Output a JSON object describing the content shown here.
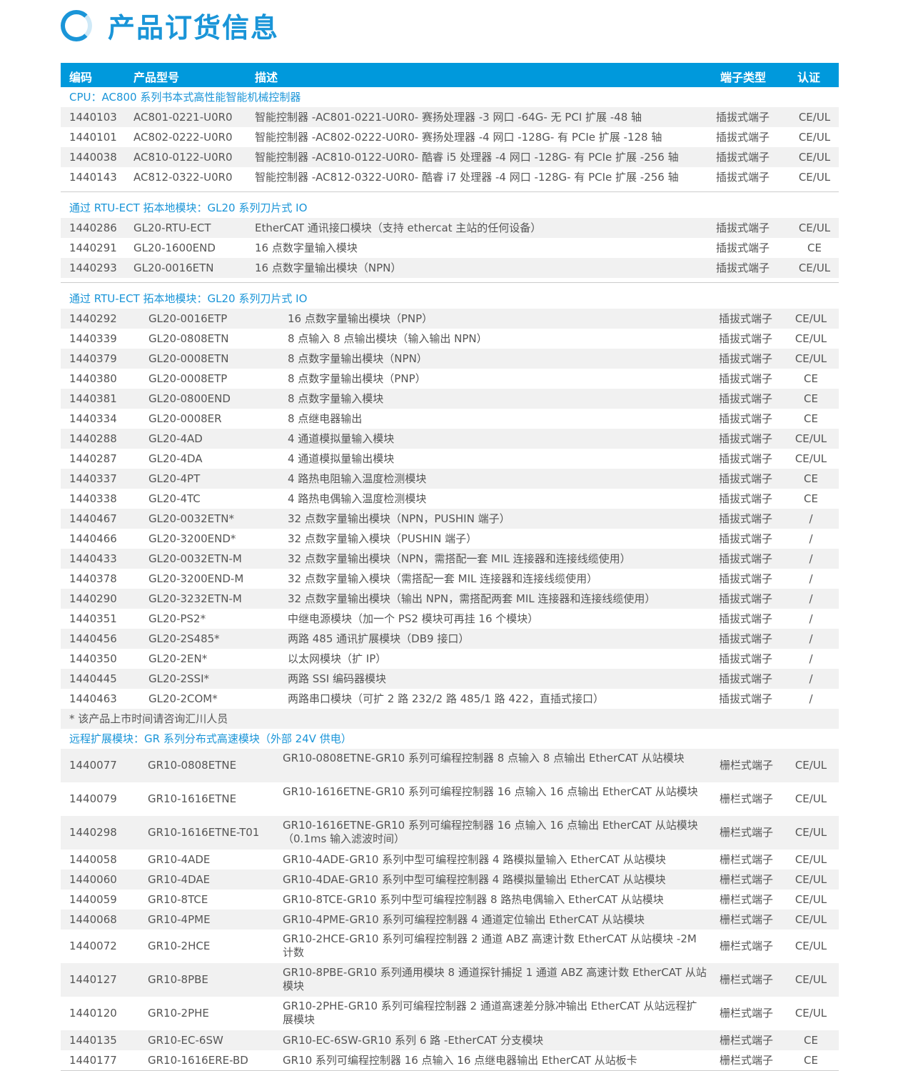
{
  "title": "产品订货信息",
  "header": {
    "code": "编码",
    "model": "产品型号",
    "desc": "描述",
    "type": "端子类型",
    "cert": "认证"
  },
  "sections": [
    {
      "title": "CPU：AC800 系列书本式高性能智能机械控制器",
      "rows": [
        [
          "1440103",
          "AC801-0221-U0R0",
          "智能控制器 -AC801-0221-U0R0- 赛扬处理器 -3 网口 -64G- 无 PCI 扩展 -48 轴",
          "插拔式端子",
          "CE/UL"
        ],
        [
          "1440101",
          "AC802-0222-U0R0",
          "智能控制器 -AC802-0222-U0R0- 赛扬处理器 -4 网口 -128G- 有 PCIe 扩展 -128 轴",
          "插拔式端子",
          "CE/UL"
        ],
        [
          "1440038",
          "AC810-0122-U0R0",
          "智能控制器 -AC810-0122-U0R0- 酷睿 i5 处理器 -4 网口 -128G- 有 PCIe 扩展 -256 轴",
          "插拔式端子",
          "CE/UL"
        ],
        [
          "1440143",
          "AC812-0322-U0R0",
          "智能控制器 -AC812-0322-U0R0- 酷睿 i7 处理器 -4 网口 -128G- 有 PCIe 扩展 -256 轴",
          "插拔式端子",
          "CE/UL"
        ]
      ]
    },
    {
      "title": "通过 RTU-ECT 拓本地模块：GL20 系列刀片式 IO",
      "rows": [
        [
          "1440286",
          "GL20-RTU-ECT",
          "EtherCAT 通讯接口模块（支持 ethercat 主站的任何设备）",
          "插拔式端子",
          "CE/UL"
        ],
        [
          "1440291",
          "GL20-1600END",
          "16 点数字量输入模块",
          "插拔式端子",
          "CE"
        ],
        [
          "1440293",
          "GL20-0016ETN",
          "16 点数字量输出模块（NPN）",
          "插拔式端子",
          "CE/UL"
        ]
      ]
    },
    {
      "title": "通过 RTU-ECT 拓本地模块：GL20 系列刀片式 IO",
      "footnote": "* 该产品上市时间请咨询汇川人员",
      "rows": [
        [
          "1440292",
          "GL20-0016ETP",
          "16 点数字量输出模块（PNP）",
          "插拔式端子",
          "CE/UL"
        ],
        [
          "1440339",
          "GL20-0808ETN",
          "8 点输入 8 点输出模块（输入输出 NPN）",
          "插拔式端子",
          "CE/UL"
        ],
        [
          "1440379",
          "GL20-0008ETN",
          "8 点数字量输出模块（NPN）",
          "插拔式端子",
          "CE/UL"
        ],
        [
          "1440380",
          "GL20-0008ETP",
          "8 点数字量输出模块（PNP）",
          "插拔式端子",
          "CE"
        ],
        [
          "1440381",
          "GL20-0800END",
          "8 点数字量输入模块",
          "插拔式端子",
          "CE"
        ],
        [
          "1440334",
          "GL20-0008ER",
          "8 点继电器输出",
          "插拔式端子",
          "CE"
        ],
        [
          "1440288",
          "GL20-4AD",
          "4 通道模拟量输入模块",
          "插拔式端子",
          "CE/UL"
        ],
        [
          "1440287",
          "GL20-4DA",
          "4 通道模拟量输出模块",
          "插拔式端子",
          "CE/UL"
        ],
        [
          "1440337",
          "GL20-4PT",
          "4 路热电阻输入温度检测模块",
          "插拔式端子",
          "CE"
        ],
        [
          "1440338",
          "GL20-4TC",
          "4 路热电偶输入温度检测模块",
          "插拔式端子",
          "CE"
        ],
        [
          "1440467",
          "GL20-0032ETN*",
          "32 点数字量输出模块（NPN，PUSHIN 端子）",
          "插拔式端子",
          "/"
        ],
        [
          "1440466",
          "GL20-3200END*",
          "32 点数字量输入模块（PUSHIN 端子）",
          "插拔式端子",
          "/"
        ],
        [
          "1440433",
          "GL20-0032ETN-M",
          "32 点数字量输出模块（NPN，需搭配一套 MIL 连接器和连接线缆使用）",
          "插拔式端子",
          "/"
        ],
        [
          "1440378",
          "GL20-3200END-M",
          "32 点数字量输入模块（需搭配一套 MIL 连接器和连接线缆使用）",
          "插拔式端子",
          "/"
        ],
        [
          "1440290",
          "GL20-3232ETN-M",
          "32 点数字量输出模块（输出 NPN，需搭配两套 MIL 连接器和连接线缆使用）",
          "插拔式端子",
          "/"
        ],
        [
          "1440351",
          "GL20-PS2*",
          "中继电源模块（加一个 PS2 模块可再挂 16 个模块）",
          "插拔式端子",
          "/"
        ],
        [
          "1440456",
          "GL20-2S485*",
          "两路 485 通讯扩展模块（DB9 接口）",
          "插拔式端子",
          "/"
        ],
        [
          "1440350",
          "GL20-2EN*",
          "以太网模块（扩 IP）",
          "插拔式端子",
          "/"
        ],
        [
          "1440445",
          "GL20-2SSI*",
          "两路 SSI 编码器模块",
          "插拔式端子",
          "/"
        ],
        [
          "1440463",
          "GL20-2COM*",
          "两路串口模块（可扩 2 路 232/2 路 485/1 路 422，直插式接口）",
          "插拔式端子",
          "/"
        ]
      ]
    },
    {
      "title": "远程扩展模块：GR 系列分布式高速模块（外部 24V 供电）",
      "rows": [
        [
          "1440077",
          "GR10-0808ETNE",
          "GR10-0808ETNE-GR10 系列可编程控制器 8 点输入 8 点输出 EtherCAT 从站模块",
          "栅栏式端子",
          "CE/UL"
        ],
        [
          "1440079",
          "GR10-1616ETNE",
          "GR10-1616ETNE-GR10 系列可编程控制器 16 点输入 16 点输出 EtherCAT 从站模块",
          "栅栏式端子",
          "CE/UL"
        ],
        [
          "1440298",
          "GR10-1616ETNE-T01",
          "GR10-1616ETNE-GR10 系列可编程控制器 16 点输入 16 点输出 EtherCAT 从站模块（0.1ms 输入滤波时间）",
          "栅栏式端子",
          "CE/UL"
        ],
        [
          "1440058",
          "GR10-4ADE",
          "GR10-4ADE-GR10 系列中型可编程控制器 4 路模拟量输入 EtherCAT 从站模块",
          "栅栏式端子",
          "CE/UL"
        ],
        [
          "1440060",
          "GR10-4DAE",
          "GR10-4DAE-GR10 系列中型可编程控制器 4 路模拟量输出 EtherCAT 从站模块",
          "栅栏式端子",
          "CE/UL"
        ],
        [
          "1440059",
          "GR10-8TCE",
          "GR10-8TCE-GR10 系列中型可编程控制器 8 路热电偶输入 EtherCAT 从站模块",
          "栅栏式端子",
          "CE/UL"
        ],
        [
          "1440068",
          "GR10-4PME",
          "GR10-4PME-GR10 系列可编程控制器 4 通道定位输出 EtherCAT 从站模块",
          "栅栏式端子",
          "CE/UL"
        ],
        [
          "1440072",
          "GR10-2HCE",
          "GR10-2HCE-GR10 系列可编程控制器 2 通道 ABZ 高速计数 EtherCAT 从站模块 -2M 计数",
          "栅栏式端子",
          "CE/UL"
        ],
        [
          "1440127",
          "GR10-8PBE",
          "GR10-8PBE-GR10 系列通用模块 8 通道探针捕捉 1 通道 ABZ 高速计数 EtherCAT 从站模块",
          "栅栏式端子",
          "CE/UL"
        ],
        [
          "1440120",
          "GR10-2PHE",
          "GR10-2PHE-GR10 系列可编程控制器 2 通道高速差分脉冲输出 EtherCAT 从站远程扩展模块",
          "栅栏式端子",
          "CE/UL"
        ],
        [
          "1440135",
          "GR10-EC-6SW",
          "GR10-EC-6SW-GR10 系列 6 路 -EtherCAT 分支模块",
          "栅栏式端子",
          "CE"
        ],
        [
          "1440177",
          "GR10-1616ERE-BD",
          "GR10 系列可编程控制器 16 点输入 16 点继电器输出 EtherCAT 从站板卡",
          "栅栏式端子",
          "CE"
        ]
      ]
    }
  ]
}
